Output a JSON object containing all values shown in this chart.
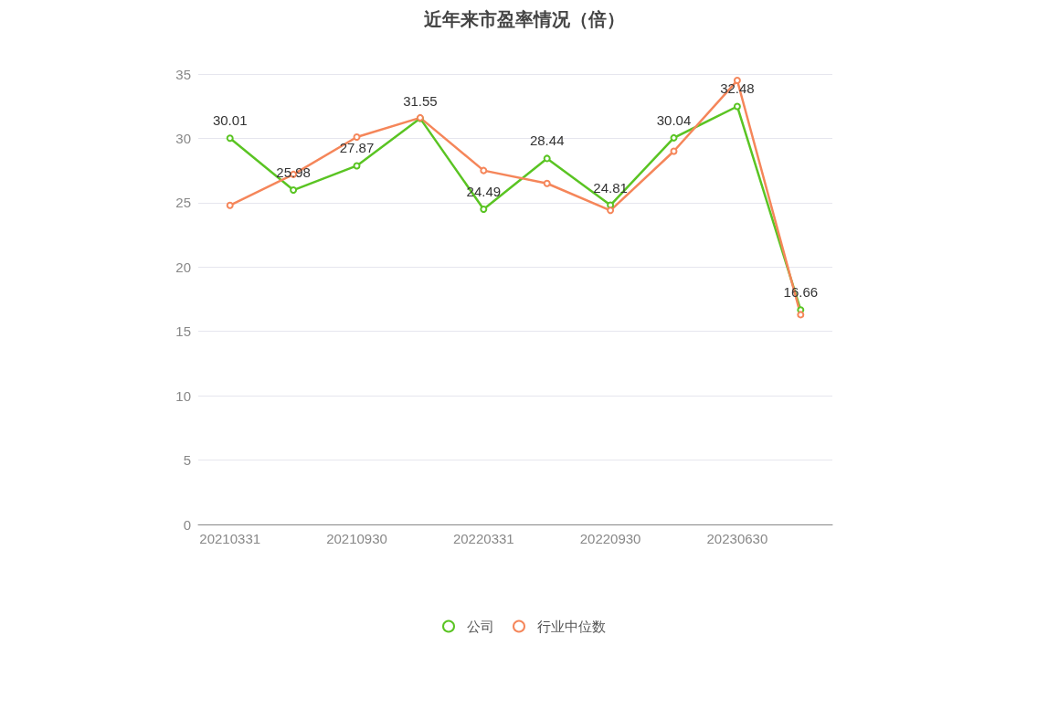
{
  "chart_data": {
    "type": "line",
    "title": "近年来市盈率情况（倍）",
    "categories": [
      "20210331",
      null,
      "20210930",
      null,
      "20220331",
      null,
      "20220930",
      null,
      "20230630",
      null
    ],
    "series": [
      {
        "name": "公司",
        "color": "#5ac423",
        "values": [
          30.01,
          25.98,
          27.87,
          31.55,
          24.49,
          28.44,
          24.81,
          30.04,
          32.48,
          16.66
        ],
        "value_labels": [
          "30.01",
          "25.98",
          "27.87",
          "31.55",
          "24.49",
          "28.44",
          "24.81",
          "30.04",
          "32.48",
          "16.66"
        ]
      },
      {
        "name": "行业中位数",
        "color": "#f5865a",
        "values": [
          24.8,
          27.2,
          30.1,
          31.6,
          27.5,
          26.5,
          24.4,
          29.0,
          34.5,
          16.3
        ]
      }
    ],
    "ylim": [
      0,
      35
    ],
    "yticks": [
      0,
      5,
      10,
      15,
      20,
      25,
      30,
      35
    ],
    "grid": "y",
    "legend": "bottom",
    "marker": "circle",
    "line_style": "solid"
  }
}
